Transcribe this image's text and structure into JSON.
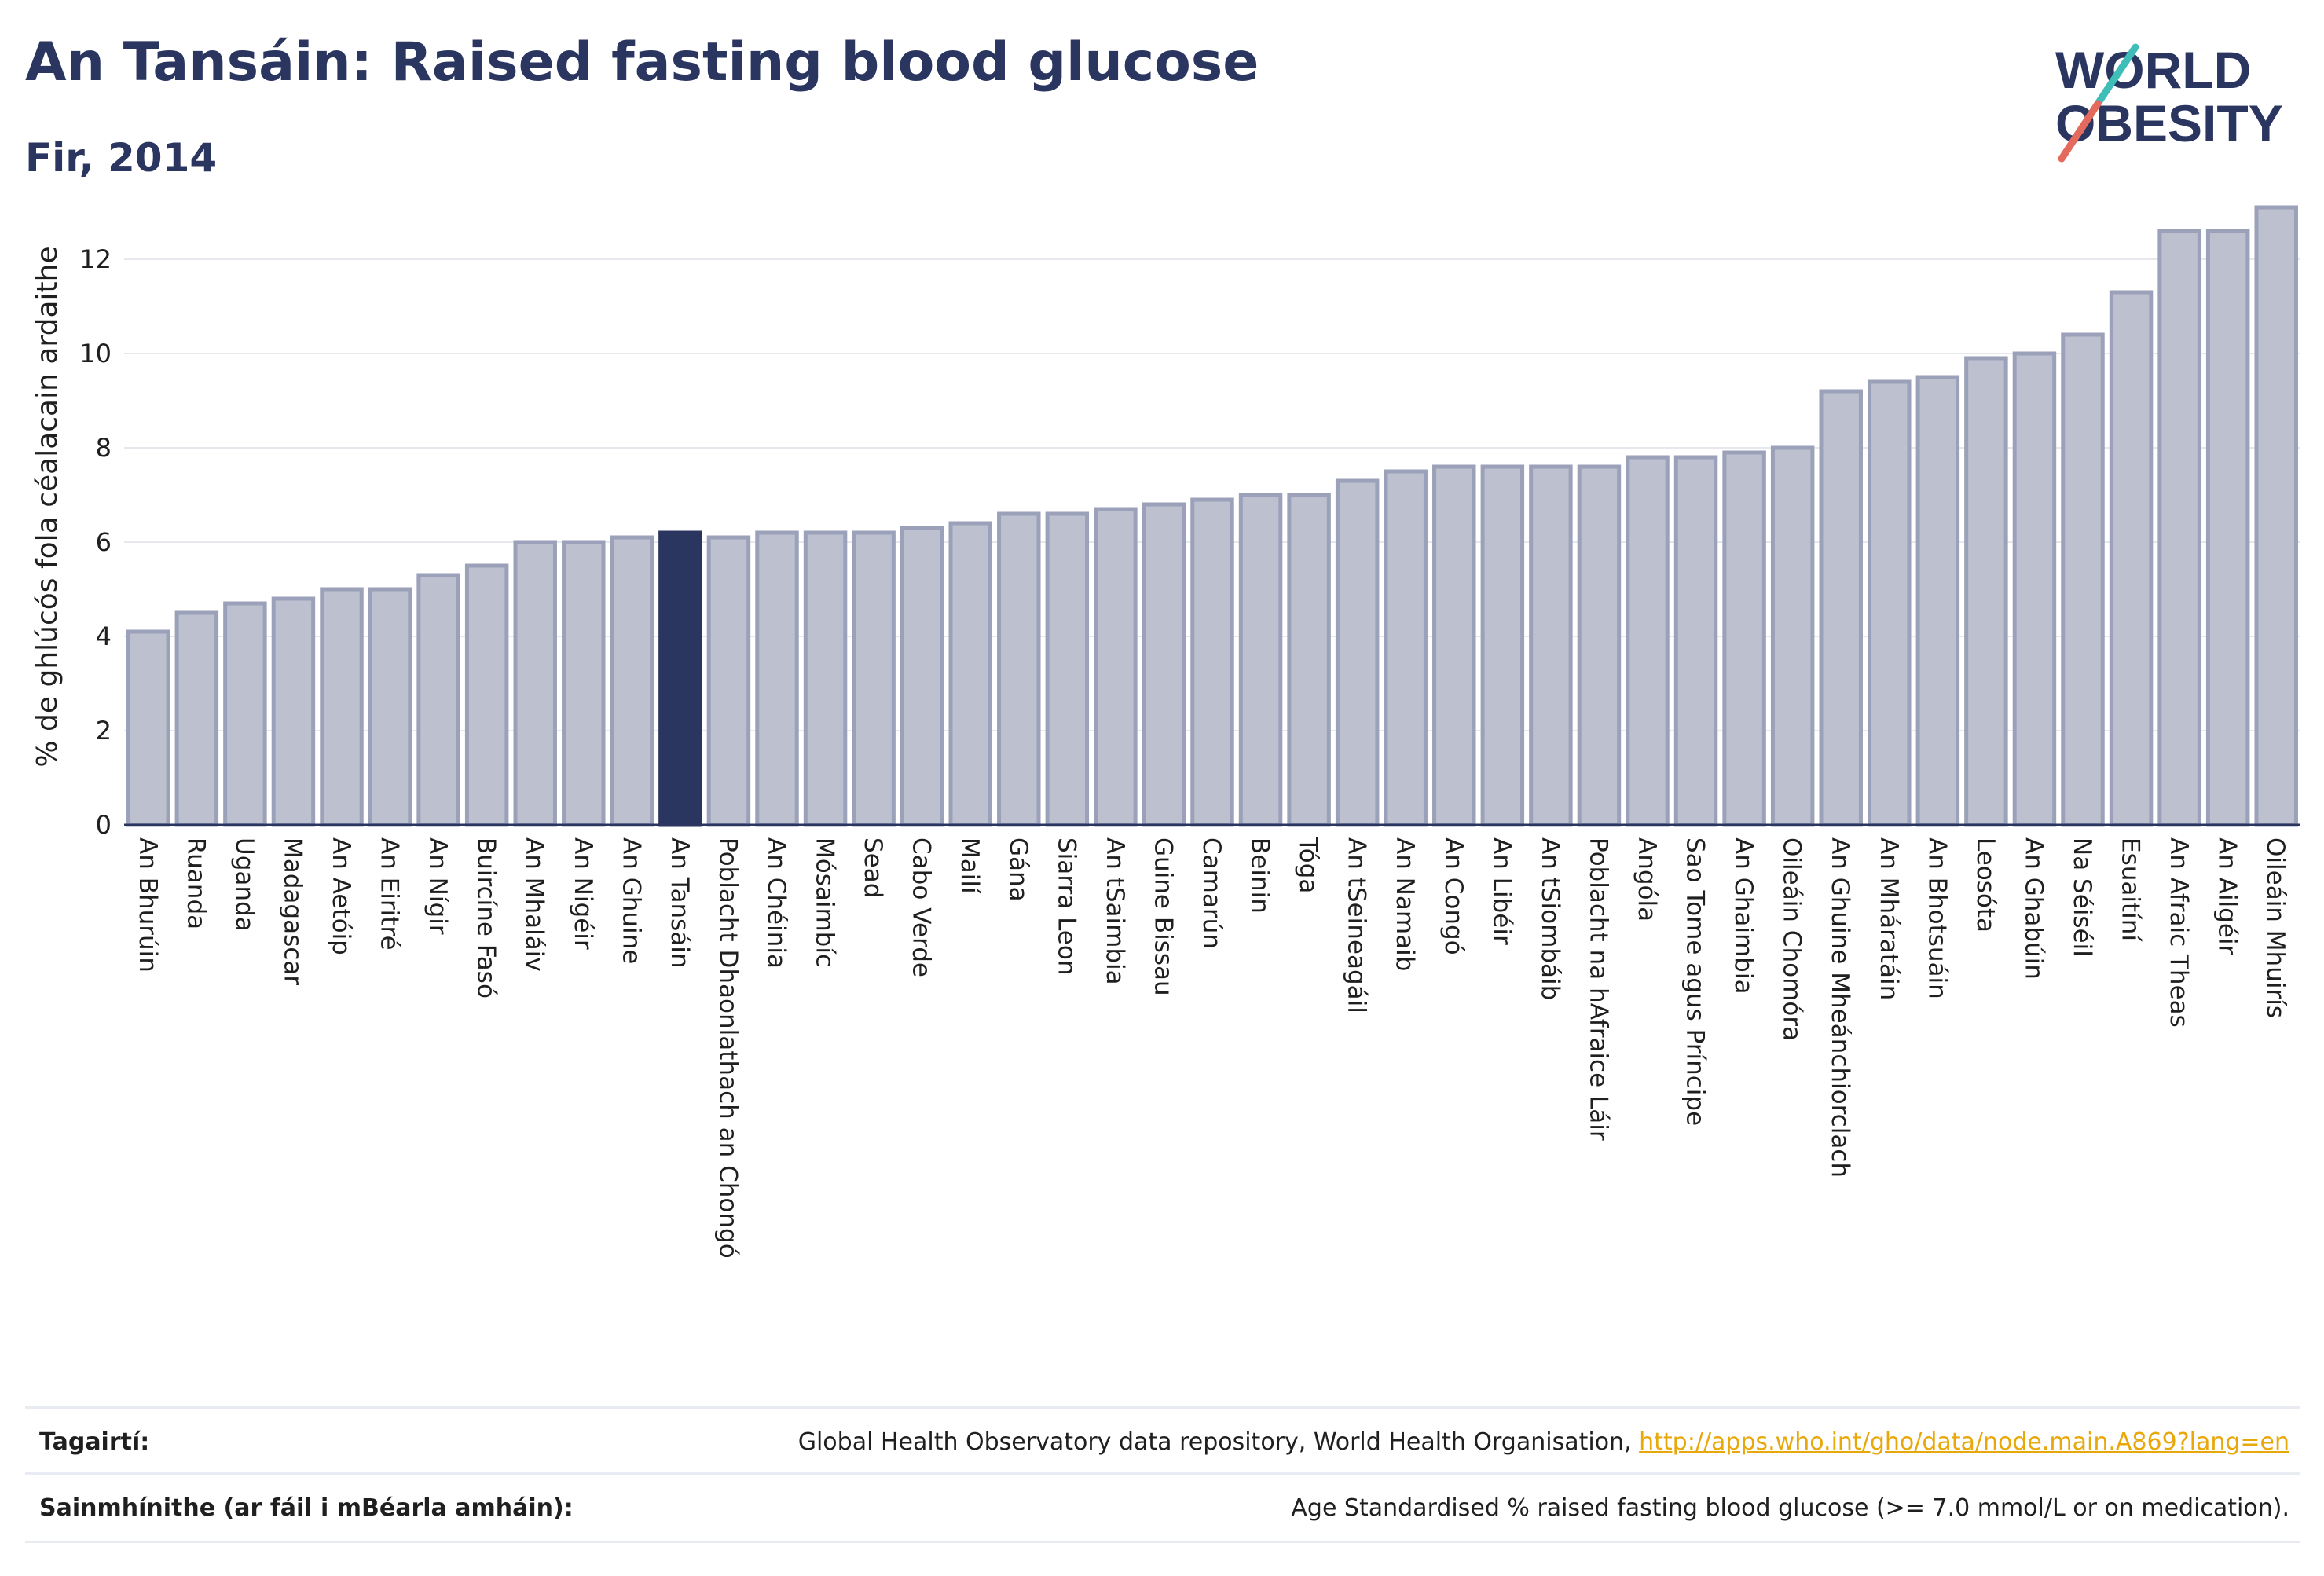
{
  "header": {
    "title": "An Tansáin: Raised fasting blood glucose",
    "subtitle": "Fir, 2014"
  },
  "logo": {
    "line1": "WORLD",
    "line2": "OBESITY"
  },
  "colors": {
    "bar": "#bcc0cf",
    "bar_border": "#9ba1b8",
    "highlight": "#2a3560",
    "grid": "#e6e8ee",
    "link": "#e8a80a"
  },
  "chart_data": {
    "type": "bar",
    "ylabel": "% de ghlúcós fola céalacain ardaithe",
    "ylim": [
      0,
      13.5
    ],
    "yticks": [
      0,
      2,
      4,
      6,
      8,
      10,
      12
    ],
    "grid": true,
    "highlight": "An Tansáin",
    "categories": [
      "An Bhurúin",
      "Ruanda",
      "Uganda",
      "Madagascar",
      "An Aetóip",
      "An Eiritré",
      "An Nígir",
      "Buircíne Fasó",
      "An Mhaláiv",
      "An Nigéir",
      "An Ghuine",
      "An Tansáin",
      "Poblacht Dhaonlathach an Chongó",
      "An Chéinia",
      "Mósaimbíc",
      "Sead",
      "Cabo Verde",
      "Mailí",
      "Gána",
      "Siarra Leon",
      "An tSaimbia",
      "Guine Bissau",
      "Camarún",
      "Beinin",
      "Tóga",
      "An tSeineagáil",
      "An Namaib",
      "An Congó",
      "An Libéir",
      "An tSiombáib",
      "Poblacht na hAfraice Láir",
      "Angóla",
      "Sao Tome agus Príncipe",
      "An Ghaimbia",
      "Oileáin Chomóra",
      "An Ghuine Mheánchiorclach",
      "An Mháratáin",
      "An Bhotsuáin",
      "Leosóta",
      "An Ghabúin",
      "Na Séiséil",
      "Esuaitíní",
      "An Afraic Theas",
      "An Ailgéir",
      "Oileáin Mhuirís"
    ],
    "values": [
      4.1,
      4.5,
      4.7,
      4.8,
      5.0,
      5.0,
      5.3,
      5.5,
      6.0,
      6.0,
      6.1,
      6.2,
      6.1,
      6.2,
      6.2,
      6.2,
      6.3,
      6.4,
      6.6,
      6.6,
      6.7,
      6.8,
      6.9,
      7.0,
      7.0,
      7.3,
      7.5,
      7.6,
      7.6,
      7.6,
      7.6,
      7.8,
      7.8,
      7.9,
      8.0,
      9.2,
      9.4,
      9.5,
      9.9,
      10.0,
      10.4,
      11.3,
      12.6,
      12.6,
      13.1
    ]
  },
  "footer": {
    "ref_label": "Tagairtí:",
    "ref_text": "Global Health Observatory data repository, World Health Organisation, ",
    "ref_link": "http://apps.who.int/gho/data/node.main.A869?lang=en",
    "def_label": "Sainmhínithe (ar fáil i mBéarla amháin):",
    "def_text": "Age Standardised % raised fasting blood glucose (>= 7.0 mmol/L or on medication)."
  }
}
